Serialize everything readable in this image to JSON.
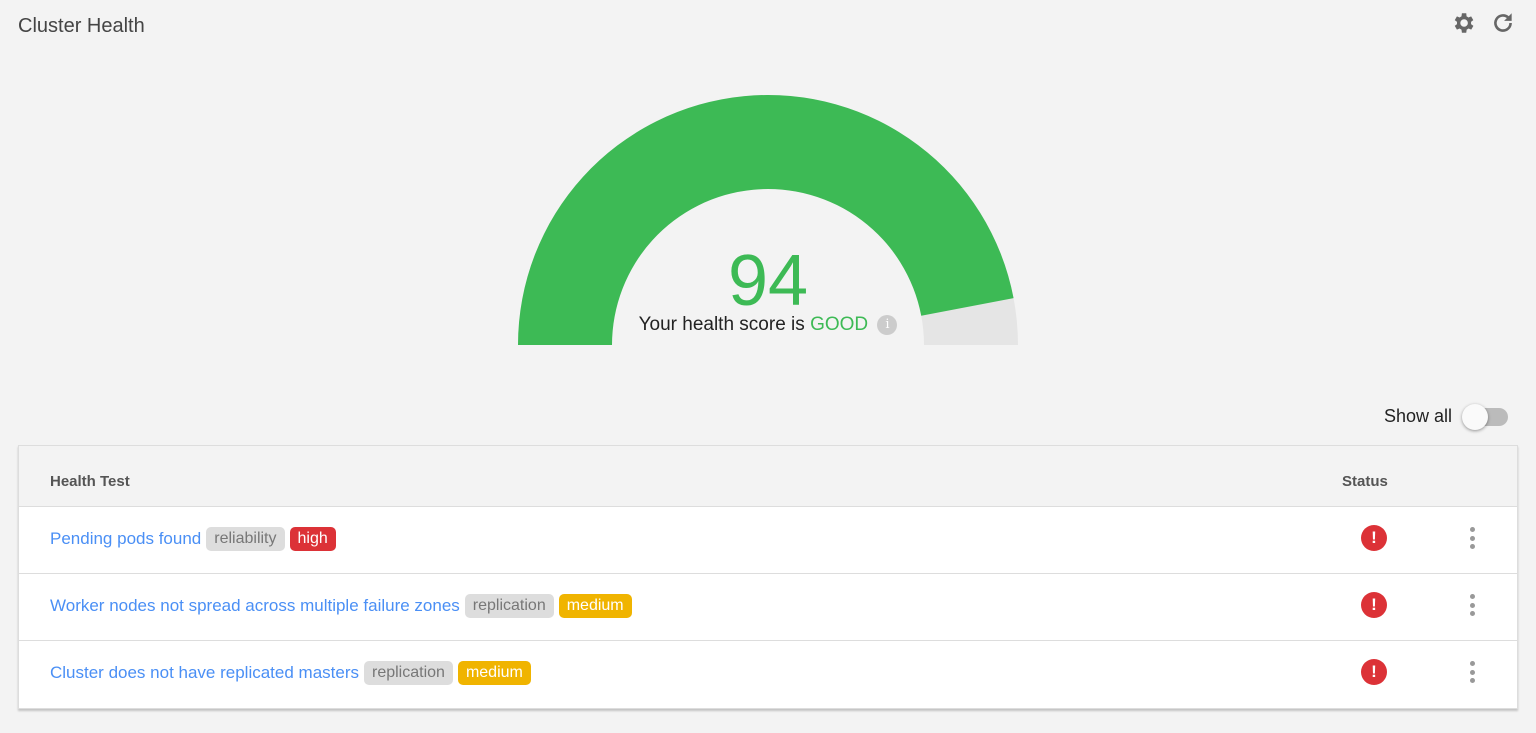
{
  "header": {
    "title": "Cluster Health",
    "icons": [
      "gear-icon",
      "refresh-icon"
    ]
  },
  "gauge": {
    "score": 94,
    "max": 100,
    "prefix": "Your health score is",
    "rating": "GOOD",
    "info": "i",
    "fill_color": "#3dba55",
    "track_color": "#e5e5e5"
  },
  "show_all": {
    "label": "Show all",
    "checked": false
  },
  "table": {
    "headers": {
      "test": "Health Test",
      "status": "Status"
    },
    "rows": [
      {
        "name": "Pending pods found",
        "category": "reliability",
        "severity": "high",
        "status": "!"
      },
      {
        "name": "Worker nodes not spread across multiple failure zones",
        "category": "replication",
        "severity": "medium",
        "status": "!"
      },
      {
        "name": "Cluster does not have replicated masters",
        "category": "replication",
        "severity": "medium",
        "status": "!"
      }
    ]
  }
}
